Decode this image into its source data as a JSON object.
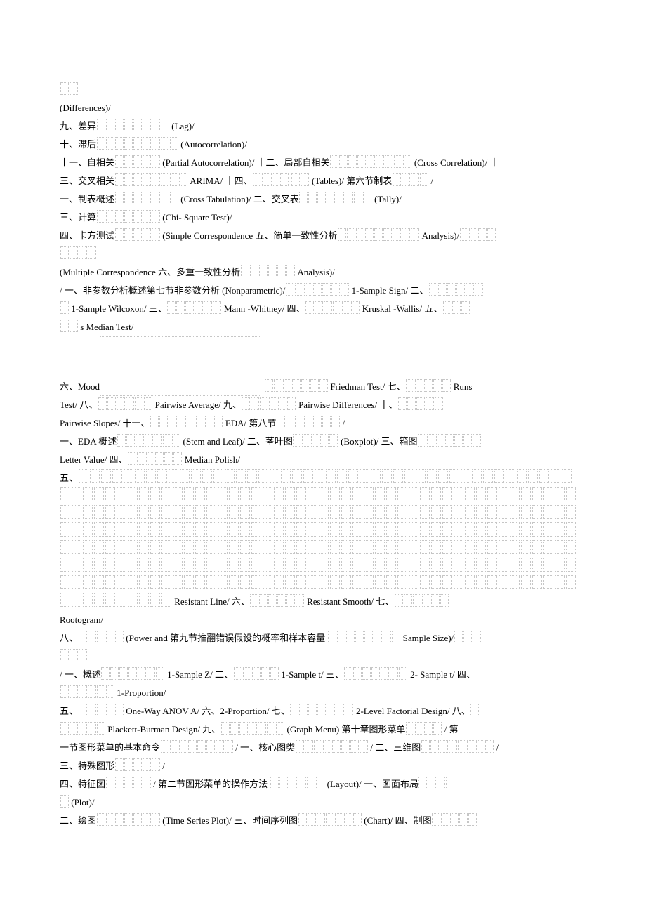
{
  "placeholder_description": "dotted empty glyph boxes (missing/unknown characters rendered as outlined squares)",
  "colors": {
    "background": "#ffffff",
    "text": "#000000",
    "placeholder_border": "#999999"
  },
  "lines": [
    {
      "segments": [
        {
          "ph": 2
        }
      ]
    },
    {
      "segments": [
        {
          "t": "(Differences)/"
        }
      ]
    },
    {
      "segments": [
        {
          "t": "九、差异"
        },
        {
          "ph": 8
        },
        {
          "t": " (Lag)/"
        }
      ]
    },
    {
      "segments": [
        {
          "t": "十、滞后"
        },
        {
          "ph": 9
        },
        {
          "t": " (Autocorrelation)/"
        }
      ]
    },
    {
      "segments": [
        {
          "t": "十一、自相关"
        },
        {
          "ph": 5
        },
        {
          "t": " (Partial Autocorrelation)/   十二、局部自相关"
        },
        {
          "ph": 9
        },
        {
          "t": " (Cross Correlation)/   十"
        }
      ]
    },
    {
      "segments": [
        {
          "t": "三、交叉相关"
        },
        {
          "ph": 8
        },
        {
          "t": " ARIMA/   十四、"
        },
        {
          "ph": 4
        },
        {
          "t": "  "
        },
        {
          "ph": 2
        },
        {
          "t": " (Tables)/   第六节制表"
        },
        {
          "ph": 4
        },
        {
          "t": " /"
        }
      ]
    },
    {
      "segments": [
        {
          "t": "一、制表概述"
        },
        {
          "ph": 7
        },
        {
          "t": " (Cross Tabulation)/  二、交叉表"
        },
        {
          "ph": 8
        },
        {
          "t": " (Tally)/"
        }
      ]
    },
    {
      "segments": [
        {
          "t": "三、计算"
        },
        {
          "ph": 7
        },
        {
          "t": " (Chi- Square Test)/"
        }
      ]
    },
    {
      "segments": [
        {
          "t": "四、卡方测试"
        },
        {
          "ph": 5
        },
        {
          "t": " (Simple Correspondence  五、简单一致性分析"
        },
        {
          "ph": 9
        },
        {
          "t": " Analysis)/"
        },
        {
          "ph": 4
        }
      ]
    },
    {
      "segments": [
        {
          "ph": 4
        }
      ]
    },
    {
      "segments": [
        {
          "t": "(Multiple Correspondence   六、多重一致性分析"
        },
        {
          "ph": 6
        },
        {
          "t": " Analysis)/"
        }
      ]
    },
    {
      "segments": [
        {
          "t": "/ 一、非参数分析概述第七节非参数分析       (Nonparametric)/"
        },
        {
          "ph": 7
        },
        {
          "t": " 1-Sample Sign/ 二、"
        },
        {
          "ph": 6
        }
      ]
    },
    {
      "segments": [
        {
          "ph": 1
        },
        {
          "t": " 1-Sample Wilcoxon/  三、"
        },
        {
          "ph": 6
        },
        {
          "t": " Mann -Whitney/  四、"
        },
        {
          "ph": 6
        },
        {
          "t": " Kruskal -Wallis/ 五、"
        },
        {
          "ph": 3
        }
      ]
    },
    {
      "segments": [
        {
          "ph": 2
        },
        {
          "t": " s Median Test/"
        }
      ]
    },
    {
      "segments": [
        {
          "t": "六、Mood"
        },
        {
          "big": 1
        },
        {
          "ph": 7
        },
        {
          "t": " Friedman Test/ 七、"
        },
        {
          "ph": 5
        },
        {
          "t": " Runs"
        }
      ]
    },
    {
      "segments": [
        {
          "t": "Test/ 八、"
        },
        {
          "ph": 6
        },
        {
          "t": " Pairwise Average/ 九、"
        },
        {
          "ph": 6
        },
        {
          "t": " Pairwise Differences/ 十、"
        },
        {
          "ph": 5
        }
      ]
    },
    {
      "segments": [
        {
          "t": "Pairwise Slopes/ 十一、"
        },
        {
          "ph": 8
        },
        {
          "t": " EDA/  第八节"
        },
        {
          "ph": 7
        },
        {
          "t": " /"
        }
      ]
    },
    {
      "segments": [
        {
          "t": "一、EDA 概述"
        },
        {
          "ph": 7
        },
        {
          "t": " (Stem and Leaf)/ 二、茎叶图"
        },
        {
          "ph": 5
        },
        {
          "t": " (Boxplot)/  三、箱图"
        },
        {
          "ph": 7
        }
      ]
    },
    {
      "segments": [
        {
          "t": "Letter Value/  四、"
        },
        {
          "ph": 6
        },
        {
          "t": " Median Polish/"
        }
      ]
    },
    {
      "segments": [
        {
          "t": "五、"
        },
        {
          "ph": 44,
          "wide": true
        }
      ]
    },
    {
      "segments": [
        {
          "ph": 46,
          "wide": true
        }
      ]
    },
    {
      "segments": [
        {
          "ph": 46,
          "wide": true
        }
      ]
    },
    {
      "segments": [
        {
          "ph": 46,
          "wide": true
        }
      ]
    },
    {
      "segments": [
        {
          "ph": 46,
          "wide": true
        }
      ]
    },
    {
      "segments": [
        {
          "ph": 46,
          "wide": true
        }
      ]
    },
    {
      "segments": [
        {
          "ph": 46,
          "wide": true
        }
      ]
    },
    {
      "segments": [
        {
          "ph": 10,
          "wide": true
        },
        {
          "t": " Resistant Line/   六、"
        },
        {
          "ph": 6
        },
        {
          "t": " Resistant Smooth/  七、"
        },
        {
          "ph": 6
        }
      ]
    },
    {
      "segments": [
        {
          "t": "Rootogram/"
        }
      ]
    },
    {
      "segments": [
        {
          "t": "八、"
        },
        {
          "ph": 5
        },
        {
          "t": " (Power and   第九节推翻错误假设的概率和样本容量      "
        },
        {
          "ph": 8
        },
        {
          "t": " Sample Size)/"
        },
        {
          "ph": 3
        }
      ]
    },
    {
      "segments": [
        {
          "ph": 3
        }
      ]
    },
    {
      "segments": [
        {
          "t": "/ 一、概述"
        },
        {
          "ph": 7
        },
        {
          "t": " 1-Sample Z/ 二、"
        },
        {
          "ph": 5
        },
        {
          "t": " 1-Sample t/ 三、"
        },
        {
          "ph": 7
        },
        {
          "t": " 2- Sample t/ 四、"
        }
      ]
    },
    {
      "segments": [
        {
          "ph": 6
        },
        {
          "t": " 1-Proportion/"
        }
      ]
    },
    {
      "segments": [
        {
          "t": "五、"
        },
        {
          "ph": 5
        },
        {
          "t": " One-Way ANOV A/  六、2-Proportion/ 七、"
        },
        {
          "ph": 7
        },
        {
          "t": " 2-Level Factorial Design/   八、"
        },
        {
          "ph": 1
        }
      ]
    },
    {
      "segments": [
        {
          "ph": 5
        },
        {
          "t": " Plackett-Burman Design/  九、"
        },
        {
          "ph": 7
        },
        {
          "t": " (Graph Menu)   第十章图形菜单"
        },
        {
          "ph": 4
        },
        {
          "t": " / 第"
        }
      ]
    },
    {
      "segments": [
        {
          "t": "一节图形菜单的基本命令"
        },
        {
          "ph": 8
        },
        {
          "t": " / 一、核心图类"
        },
        {
          "ph": 8
        },
        {
          "t": " / 二、三维图"
        },
        {
          "ph": 8
        },
        {
          "t": " /"
        }
      ]
    },
    {
      "segments": [
        {
          "t": "三、特殊图形"
        },
        {
          "ph": 5
        },
        {
          "t": " /"
        }
      ]
    },
    {
      "segments": [
        {
          "t": "四、特征图"
        },
        {
          "ph": 5
        },
        {
          "t": " / 第二节图形菜单的操作方法      "
        },
        {
          "ph": 6
        },
        {
          "t": " (Layout)/   一、图面布局"
        },
        {
          "ph": 4
        }
      ]
    },
    {
      "segments": [
        {
          "ph": 1
        },
        {
          "t": " (Plot)/"
        }
      ]
    },
    {
      "segments": [
        {
          "t": "二、绘图"
        },
        {
          "ph": 7
        },
        {
          "t": " (Time Series Plot)/  三、时间序列图"
        },
        {
          "ph": 7
        },
        {
          "t": " (Chart)/   四、制图"
        },
        {
          "ph": 5
        }
      ]
    }
  ]
}
